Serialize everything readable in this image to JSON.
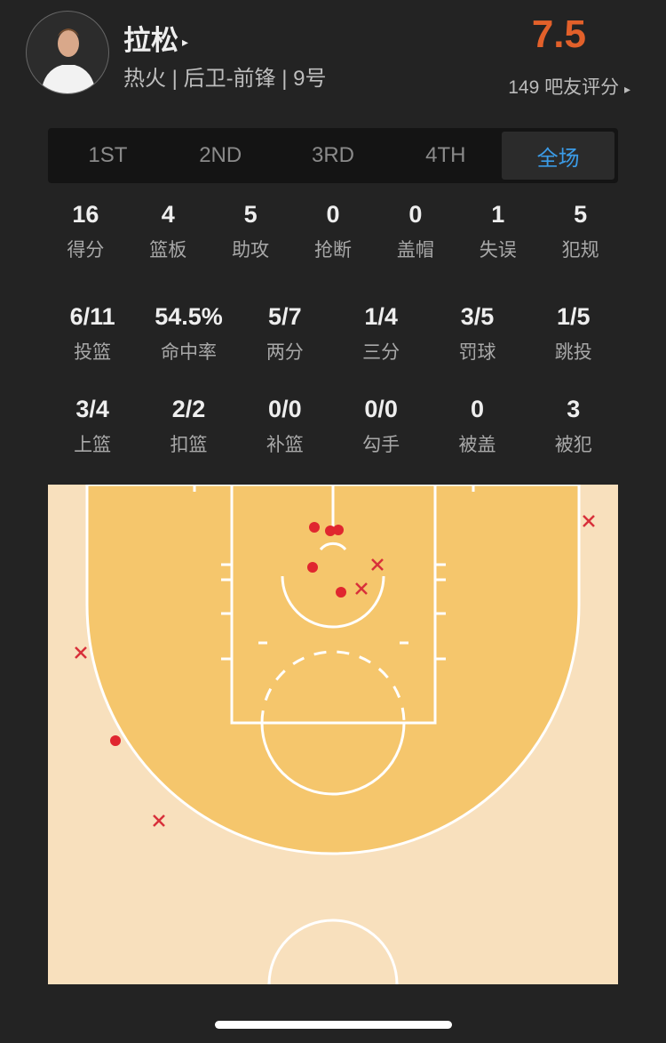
{
  "player": {
    "name": "拉松",
    "info": "热火 | 后卫-前锋 | 9号",
    "rating": "7.5",
    "raters": "149 吧友评分",
    "arrow": "▸"
  },
  "tabs": [
    {
      "label": "1ST"
    },
    {
      "label": "2ND"
    },
    {
      "label": "3RD"
    },
    {
      "label": "4TH"
    },
    {
      "label": "全场",
      "selected": true
    }
  ],
  "stats_row1": [
    {
      "v": "16",
      "l": "得分"
    },
    {
      "v": "4",
      "l": "篮板"
    },
    {
      "v": "5",
      "l": "助攻"
    },
    {
      "v": "0",
      "l": "抢断"
    },
    {
      "v": "0",
      "l": "盖帽"
    },
    {
      "v": "1",
      "l": "失误"
    },
    {
      "v": "5",
      "l": "犯规"
    }
  ],
  "stats_row2": [
    {
      "v": "6/11",
      "l": "投篮"
    },
    {
      "v": "54.5%",
      "l": "命中率"
    },
    {
      "v": "5/7",
      "l": "两分"
    },
    {
      "v": "1/4",
      "l": "三分"
    },
    {
      "v": "3/5",
      "l": "罚球"
    },
    {
      "v": "1/5",
      "l": "跳投"
    }
  ],
  "stats_row3": [
    {
      "v": "3/4",
      "l": "上篮"
    },
    {
      "v": "2/2",
      "l": "扣篮"
    },
    {
      "v": "0/0",
      "l": "补篮"
    },
    {
      "v": "0/0",
      "l": "勾手"
    },
    {
      "v": "0",
      "l": "被盖"
    },
    {
      "v": "3",
      "l": "被犯"
    }
  ],
  "shot_chart": {
    "made_count": 6,
    "missed_count": 5,
    "colors": {
      "made": "#e0262f",
      "missed": "#d8303a",
      "paint": "#f5c66c",
      "outside": "#f8e0bd"
    }
  },
  "colors": {
    "background": "#232323",
    "rating": "#e2602a",
    "accent": "#3b9be6"
  }
}
